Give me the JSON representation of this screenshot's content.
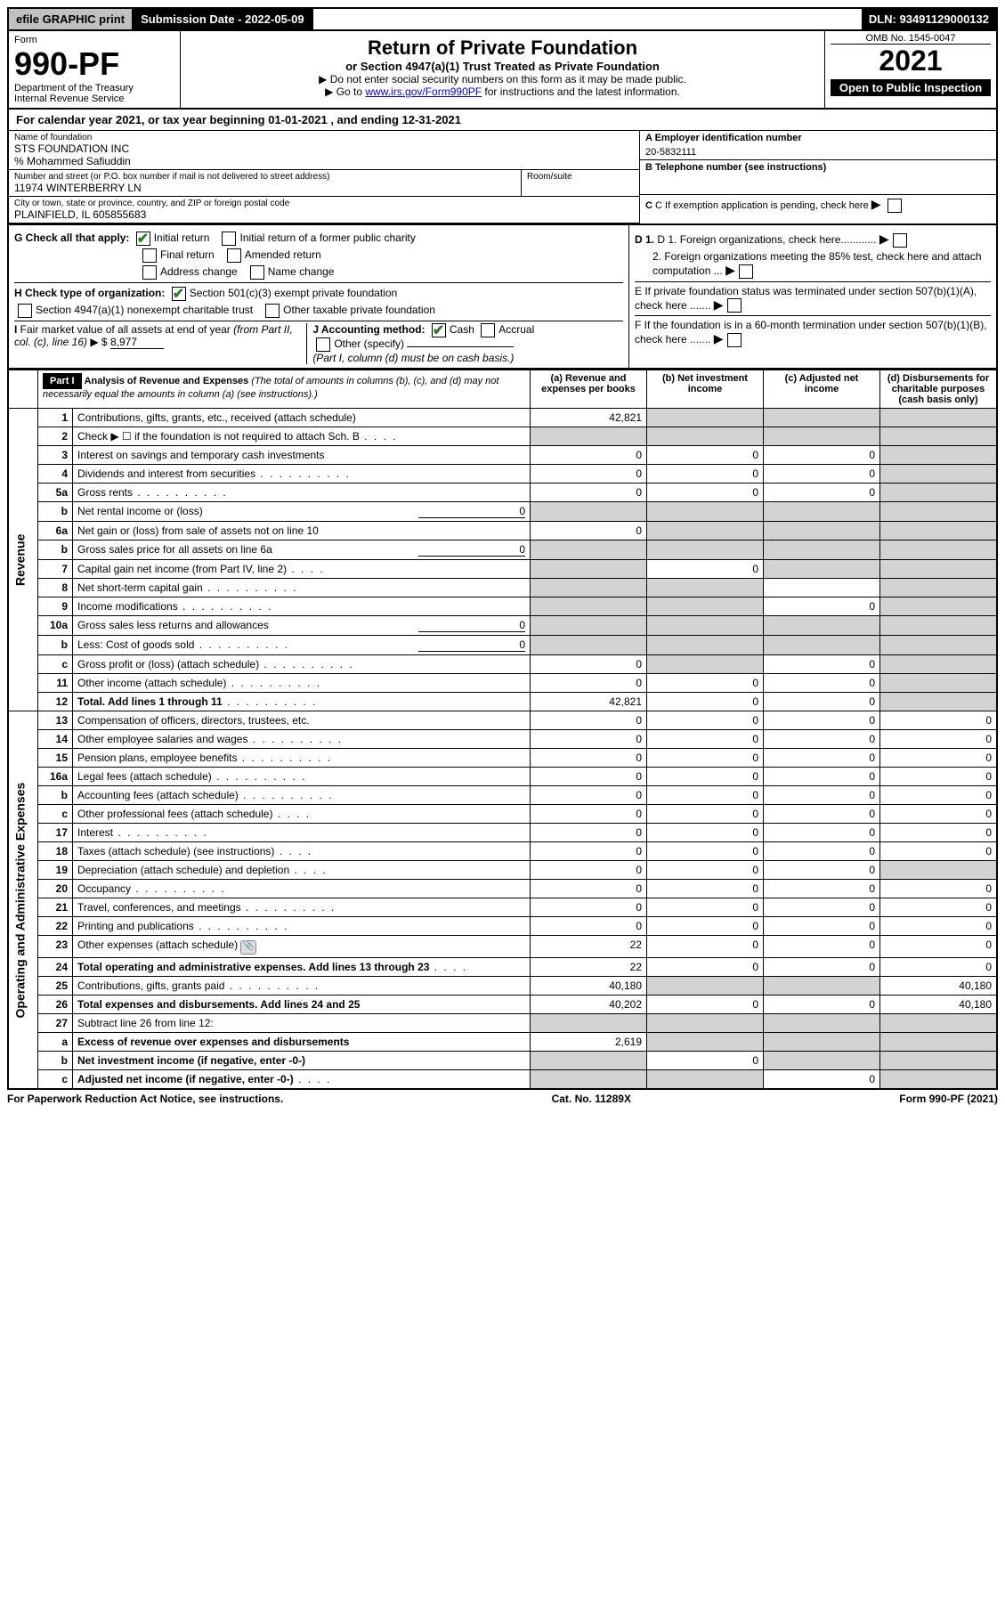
{
  "top": {
    "efile": "efile GRAPHIC print",
    "submission": "Submission Date - 2022-05-09",
    "dln": "DLN: 93491129000132"
  },
  "header": {
    "form_word": "Form",
    "form_no": "990-PF",
    "dept1": "Department of the Treasury",
    "dept2": "Internal Revenue Service",
    "title": "Return of Private Foundation",
    "subtitle": "or Section 4947(a)(1) Trust Treated as Private Foundation",
    "instr1": "▶ Do not enter social security numbers on this form as it may be made public.",
    "instr2_pre": "▶ Go to ",
    "instr2_link": "www.irs.gov/Form990PF",
    "instr2_post": " for instructions and the latest information.",
    "omb": "OMB No. 1545-0047",
    "year": "2021",
    "open": "Open to Public Inspection"
  },
  "calendar": "For calendar year 2021, or tax year beginning 01-01-2021             , and ending 12-31-2021",
  "entity": {
    "name_lbl": "Name of foundation",
    "name": "STS FOUNDATION INC",
    "care_of": "% Mohammed Safiuddin",
    "street_lbl": "Number and street (or P.O. box number if mail is not delivered to street address)",
    "street": "11974 WINTERBERRY LN",
    "room_lbl": "Room/suite",
    "city_lbl": "City or town, state or province, country, and ZIP or foreign postal code",
    "city": "PLAINFIELD, IL  605855683",
    "a_lbl": "A Employer identification number",
    "a_val": "20-5832111",
    "b_lbl": "B Telephone number (see instructions)",
    "c_lbl": "C If exemption application is pending, check here",
    "d1_lbl": "D 1. Foreign organizations, check here............",
    "d2_lbl": "2. Foreign organizations meeting the 85% test, check here and attach computation ...",
    "e_lbl": "E  If private foundation status was terminated under section 507(b)(1)(A), check here .......",
    "f_lbl": "F  If the foundation is in a 60-month termination under section 507(b)(1)(B), check here .......",
    "g_lbl": "G Check all that apply:",
    "g_opts": [
      "Initial return",
      "Initial return of a former public charity",
      "Final return",
      "Amended return",
      "Address change",
      "Name change"
    ],
    "h_lbl": "H Check type of organization:",
    "h1": "Section 501(c)(3) exempt private foundation",
    "h2": "Section 4947(a)(1) nonexempt charitable trust",
    "h3": "Other taxable private foundation",
    "i_lbl": "I Fair market value of all assets at end of year (from Part II, col. (c), line 16) ▶ $",
    "i_val": "8,977",
    "j_lbl": "J Accounting method:",
    "j1": "Cash",
    "j2": "Accrual",
    "j3": "Other (specify)",
    "j_note": "(Part I, column (d) must be on cash basis.)"
  },
  "part1": {
    "label": "Part I",
    "title": "Analysis of Revenue and Expenses",
    "title_note": "(The total of amounts in columns (b), (c), and (d) may not necessarily equal the amounts in column (a) (see instructions).)",
    "cols": {
      "a": "(a)  Revenue and expenses per books",
      "b": "(b)  Net investment income",
      "c": "(c)  Adjusted net income",
      "d": "(d)  Disbursements for charitable purposes (cash basis only)"
    },
    "side_rev": "Revenue",
    "side_exp": "Operating and Administrative Expenses"
  },
  "rows": [
    {
      "n": "1",
      "d": "Contributions, gifts, grants, etc., received (attach schedule)",
      "a": "42,821",
      "b": "",
      "c": "",
      "ds": "s",
      "bs": "s",
      "cs": "s"
    },
    {
      "n": "2",
      "d": "Check ▶ ☐ if the foundation is not required to attach Sch. B",
      "dots": 1,
      "as": "s",
      "bs": "s",
      "cs": "s",
      "ds": "s"
    },
    {
      "n": "3",
      "d": "Interest on savings and temporary cash investments",
      "a": "0",
      "b": "0",
      "c": "0",
      "ds": "s"
    },
    {
      "n": "4",
      "d": "Dividends and interest from securities",
      "dots": 1,
      "a": "0",
      "b": "0",
      "c": "0",
      "ds": "s"
    },
    {
      "n": "5a",
      "d": "Gross rents",
      "dots": 1,
      "a": "0",
      "b": "0",
      "c": "0",
      "ds": "s"
    },
    {
      "n": "b",
      "d": "Net rental income or (loss)",
      "inl": "0",
      "as": "s",
      "bs": "s",
      "cs": "s",
      "ds": "s"
    },
    {
      "n": "6a",
      "d": "Net gain or (loss) from sale of assets not on line 10",
      "a": "0",
      "bs": "s",
      "cs": "s",
      "ds": "s"
    },
    {
      "n": "b",
      "d": "Gross sales price for all assets on line 6a",
      "inl": "0",
      "as": "s",
      "bs": "s",
      "cs": "s",
      "ds": "s"
    },
    {
      "n": "7",
      "d": "Capital gain net income (from Part IV, line 2)",
      "dots": 1,
      "as": "s",
      "b": "0",
      "cs": "s",
      "ds": "s"
    },
    {
      "n": "8",
      "d": "Net short-term capital gain",
      "dots": 1,
      "as": "s",
      "bs": "s",
      "ds": "s"
    },
    {
      "n": "9",
      "d": "Income modifications",
      "dots": 1,
      "as": "s",
      "bs": "s",
      "c": "0",
      "ds": "s"
    },
    {
      "n": "10a",
      "d": "Gross sales less returns and allowances",
      "inl": "0",
      "as": "s",
      "bs": "s",
      "cs": "s",
      "ds": "s"
    },
    {
      "n": "b",
      "d": "Less: Cost of goods sold",
      "dots": 1,
      "inl": "0",
      "as": "s",
      "bs": "s",
      "cs": "s",
      "ds": "s"
    },
    {
      "n": "c",
      "d": "Gross profit or (loss) (attach schedule)",
      "dots": 1,
      "a": "0",
      "bs": "s",
      "c": "0",
      "ds": "s"
    },
    {
      "n": "11",
      "d": "Other income (attach schedule)",
      "dots": 1,
      "a": "0",
      "b": "0",
      "c": "0",
      "ds": "s"
    },
    {
      "n": "12",
      "d": "Total. Add lines 1 through 11",
      "dots": 1,
      "bold": 1,
      "a": "42,821",
      "b": "0",
      "c": "0",
      "ds": "s"
    },
    {
      "n": "13",
      "d": "Compensation of officers, directors, trustees, etc.",
      "a": "0",
      "b": "0",
      "c": "0",
      "dv": "0"
    },
    {
      "n": "14",
      "d": "Other employee salaries and wages",
      "dots": 1,
      "a": "0",
      "b": "0",
      "c": "0",
      "dv": "0"
    },
    {
      "n": "15",
      "d": "Pension plans, employee benefits",
      "dots": 1,
      "a": "0",
      "b": "0",
      "c": "0",
      "dv": "0"
    },
    {
      "n": "16a",
      "d": "Legal fees (attach schedule)",
      "dots": 1,
      "a": "0",
      "b": "0",
      "c": "0",
      "dv": "0"
    },
    {
      "n": "b",
      "d": "Accounting fees (attach schedule)",
      "dots": 1,
      "a": "0",
      "b": "0",
      "c": "0",
      "dv": "0"
    },
    {
      "n": "c",
      "d": "Other professional fees (attach schedule)",
      "dots": 1,
      "a": "0",
      "b": "0",
      "c": "0",
      "dv": "0"
    },
    {
      "n": "17",
      "d": "Interest",
      "dots": 1,
      "a": "0",
      "b": "0",
      "c": "0",
      "dv": "0"
    },
    {
      "n": "18",
      "d": "Taxes (attach schedule) (see instructions)",
      "dots": 1,
      "a": "0",
      "b": "0",
      "c": "0",
      "dv": "0"
    },
    {
      "n": "19",
      "d": "Depreciation (attach schedule) and depletion",
      "dots": 1,
      "a": "0",
      "b": "0",
      "c": "0",
      "ds": "s"
    },
    {
      "n": "20",
      "d": "Occupancy",
      "dots": 1,
      "a": "0",
      "b": "0",
      "c": "0",
      "dv": "0"
    },
    {
      "n": "21",
      "d": "Travel, conferences, and meetings",
      "dots": 1,
      "a": "0",
      "b": "0",
      "c": "0",
      "dv": "0"
    },
    {
      "n": "22",
      "d": "Printing and publications",
      "dots": 1,
      "a": "0",
      "b": "0",
      "c": "0",
      "dv": "0"
    },
    {
      "n": "23",
      "d": "Other expenses (attach schedule)",
      "dots": 1,
      "icon": 1,
      "a": "22",
      "b": "0",
      "c": "0",
      "dv": "0"
    },
    {
      "n": "24",
      "d": "Total operating and administrative expenses. Add lines 13 through 23",
      "dots": 1,
      "bold": 1,
      "a": "22",
      "b": "0",
      "c": "0",
      "dv": "0"
    },
    {
      "n": "25",
      "d": "Contributions, gifts, grants paid",
      "dots": 1,
      "a": "40,180",
      "bs": "s",
      "cs": "s",
      "dv": "40,180"
    },
    {
      "n": "26",
      "d": "Total expenses and disbursements. Add lines 24 and 25",
      "bold": 1,
      "a": "40,202",
      "b": "0",
      "c": "0",
      "dv": "40,180"
    },
    {
      "n": "27",
      "d": "Subtract line 26 from line 12:",
      "as": "s",
      "bs": "s",
      "cs": "s",
      "ds": "s"
    },
    {
      "n": "a",
      "d": "Excess of revenue over expenses and disbursements",
      "bold": 1,
      "a": "2,619",
      "bs": "s",
      "cs": "s",
      "ds": "s"
    },
    {
      "n": "b",
      "d": "Net investment income (if negative, enter -0-)",
      "bold": 1,
      "as": "s",
      "b": "0",
      "cs": "s",
      "ds": "s"
    },
    {
      "n": "c",
      "d": "Adjusted net income (if negative, enter -0-)",
      "dots": 1,
      "bold": 1,
      "as": "s",
      "bs": "s",
      "c": "0",
      "ds": "s"
    }
  ],
  "footer": {
    "left": "For Paperwork Reduction Act Notice, see instructions.",
    "mid": "Cat. No. 11289X",
    "right": "Form 990-PF (2021)"
  }
}
